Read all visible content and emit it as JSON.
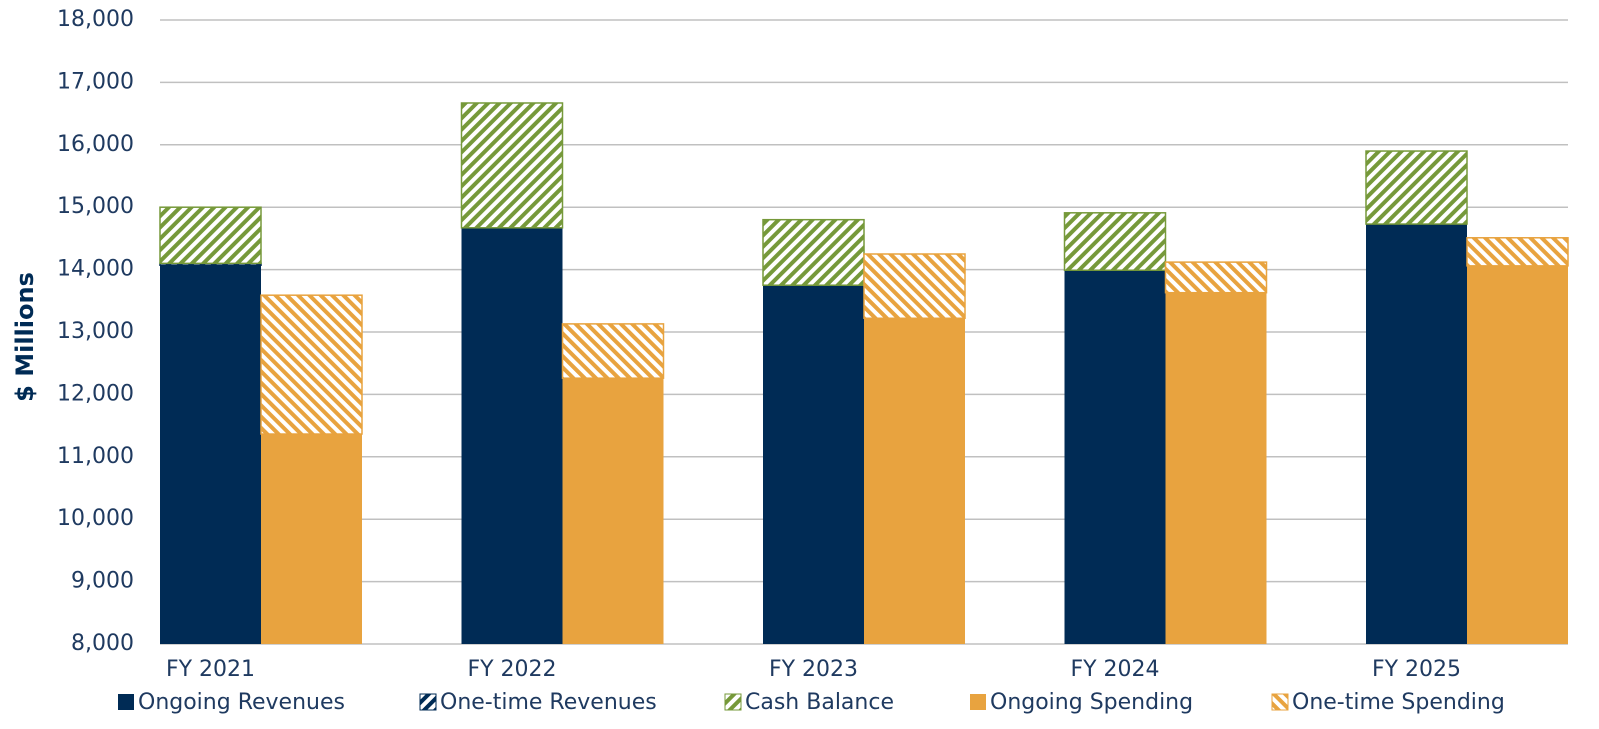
{
  "chart_data": {
    "type": "stacked_grouped_bar",
    "y_axis_label": "$ Millions",
    "categories": [
      "FY 2021",
      "FY 2022",
      "FY 2023",
      "FY 2024",
      "FY 2025"
    ],
    "series": [
      {
        "name": "Ongoing Revenues",
        "color": "#002b55",
        "stack": "revenue",
        "hatch": false,
        "values": [
          14070,
          14670,
          13750,
          13990,
          14730
        ]
      },
      {
        "name": "One-time Revenues",
        "color": "#002b55",
        "stack": "revenue",
        "hatch": true,
        "values": [
          30,
          0,
          0,
          0,
          0
        ]
      },
      {
        "name": "Cash Balance",
        "color": "#76993a",
        "stack": "revenue",
        "hatch": true,
        "values": [
          900,
          2000,
          1050,
          920,
          1170
        ]
      },
      {
        "name": "Ongoing Spending",
        "color": "#e8a33f",
        "stack": "spending",
        "hatch": false,
        "values": [
          11365,
          12260,
          13220,
          13630,
          14060
        ]
      },
      {
        "name": "One-time Spending",
        "color": "#e8a33f",
        "stack": "spending",
        "hatch": true,
        "values": [
          2225,
          870,
          1030,
          490,
          450
        ]
      }
    ],
    "ylim": [
      8000,
      18000
    ],
    "yticks": [
      {
        "value": 8000,
        "label": "8,000"
      },
      {
        "value": 9000,
        "label": "9,000"
      },
      {
        "value": 10000,
        "label": "10,000"
      },
      {
        "value": 11000,
        "label": "11,000"
      },
      {
        "value": 12000,
        "label": "12,000"
      },
      {
        "value": 13000,
        "label": "13,000"
      },
      {
        "value": 14000,
        "label": "14,000"
      },
      {
        "value": 15000,
        "label": "15,000"
      },
      {
        "value": 16000,
        "label": "16,000"
      },
      {
        "value": 17000,
        "label": "17,000"
      },
      {
        "value": 18000,
        "label": "18,000"
      }
    ],
    "grid": true,
    "legend": "bottom"
  }
}
